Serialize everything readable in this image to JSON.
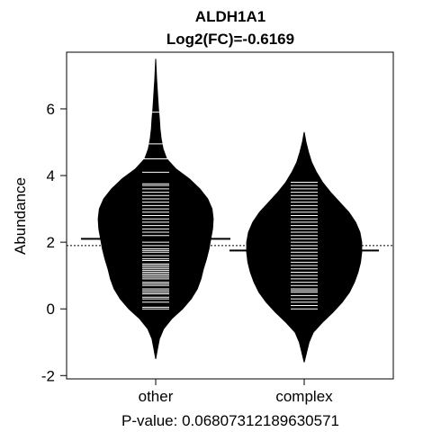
{
  "chart_data": {
    "type": "beanplot",
    "title": "ALDH1A1",
    "subtitle": "Log2(FC)=-0.6169",
    "ylabel": "Abundance",
    "xlabel": "P-value: 0.06807312189630571",
    "categories": [
      "other",
      "complex"
    ],
    "ylim": [
      -2.1,
      7.7
    ],
    "yticks": [
      -2,
      0,
      2,
      4,
      6
    ],
    "overall_mean": 1.9,
    "grid": false,
    "series": [
      {
        "category": "other",
        "mean": 2.1,
        "density": [
          [
            -1.5,
            0.0
          ],
          [
            -1.2,
            0.03
          ],
          [
            -0.9,
            0.06
          ],
          [
            -0.6,
            0.13
          ],
          [
            -0.3,
            0.26
          ],
          [
            0.0,
            0.44
          ],
          [
            0.3,
            0.58
          ],
          [
            0.6,
            0.68
          ],
          [
            0.9,
            0.74
          ],
          [
            1.2,
            0.78
          ],
          [
            1.5,
            0.83
          ],
          [
            1.8,
            0.87
          ],
          [
            2.1,
            0.9
          ],
          [
            2.4,
            0.93
          ],
          [
            2.7,
            0.94
          ],
          [
            3.0,
            0.92
          ],
          [
            3.3,
            0.85
          ],
          [
            3.6,
            0.72
          ],
          [
            3.9,
            0.55
          ],
          [
            4.2,
            0.33
          ],
          [
            4.5,
            0.18
          ],
          [
            4.8,
            0.12
          ],
          [
            5.1,
            0.09
          ],
          [
            5.4,
            0.07
          ],
          [
            5.7,
            0.06
          ],
          [
            6.0,
            0.045
          ],
          [
            6.3,
            0.035
          ],
          [
            6.6,
            0.025
          ],
          [
            6.9,
            0.015
          ],
          [
            7.2,
            0.008
          ],
          [
            7.5,
            0.0
          ]
        ],
        "points": [
          0.0,
          0.05,
          0.2,
          0.3,
          0.35,
          0.45,
          0.5,
          0.55,
          0.6,
          0.7,
          0.75,
          0.8,
          0.9,
          0.95,
          1.0,
          1.05,
          1.1,
          1.15,
          1.2,
          1.25,
          1.3,
          1.35,
          1.45,
          1.5,
          1.6,
          1.7,
          1.75,
          1.8,
          1.9,
          2.0,
          2.1,
          2.2,
          2.3,
          2.4,
          2.5,
          2.6,
          2.7,
          2.8,
          2.9,
          3.0,
          3.1,
          3.2,
          3.3,
          3.4,
          3.5,
          3.6,
          3.7,
          3.75,
          4.1,
          4.5,
          4.95,
          5.9
        ]
      },
      {
        "category": "complex",
        "mean": 1.75,
        "density": [
          [
            -1.6,
            0.0
          ],
          [
            -1.3,
            0.04
          ],
          [
            -1.0,
            0.08
          ],
          [
            -0.7,
            0.15
          ],
          [
            -0.4,
            0.3
          ],
          [
            -0.1,
            0.47
          ],
          [
            0.2,
            0.62
          ],
          [
            0.5,
            0.74
          ],
          [
            0.8,
            0.82
          ],
          [
            1.1,
            0.88
          ],
          [
            1.4,
            0.92
          ],
          [
            1.7,
            0.94
          ],
          [
            2.0,
            0.94
          ],
          [
            2.3,
            0.91
          ],
          [
            2.6,
            0.84
          ],
          [
            2.9,
            0.73
          ],
          [
            3.2,
            0.58
          ],
          [
            3.5,
            0.43
          ],
          [
            3.8,
            0.3
          ],
          [
            4.1,
            0.2
          ],
          [
            4.4,
            0.12
          ],
          [
            4.7,
            0.07
          ],
          [
            5.0,
            0.03
          ],
          [
            5.3,
            0.0
          ]
        ],
        "points": [
          0.0,
          0.1,
          0.2,
          0.3,
          0.4,
          0.5,
          0.55,
          0.6,
          0.7,
          0.8,
          0.9,
          1.0,
          1.1,
          1.2,
          1.3,
          1.4,
          1.5,
          1.6,
          1.7,
          1.8,
          1.9,
          2.0,
          2.1,
          2.2,
          2.3,
          2.4,
          2.5,
          2.6,
          2.7,
          2.8,
          2.9,
          3.0,
          3.1,
          3.2,
          3.3,
          3.4,
          3.5,
          3.6,
          3.7,
          3.8
        ]
      }
    ]
  }
}
